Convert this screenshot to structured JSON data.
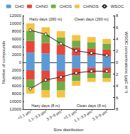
{
  "chart_data": [
    {
      "type": "bar",
      "stacked": true,
      "legend": "top",
      "grid": false,
      "ylabel": "Number of compounds",
      "y2label": "WSOC concentrations (μgC m⁻³)",
      "annotations": [
        "Hazy days (260 m)",
        "Clean days (260 m)"
      ],
      "categories": [
        "<1.1 μm",
        "1.1~3.3 μm",
        "3.3~9 μm",
        "<1.1 μm",
        "1.1~3.3 μm",
        "3.3~9 μm"
      ],
      "ylim": [
        0,
        12000
      ],
      "yticks": [
        0,
        2000,
        4000,
        6000,
        8000,
        10000,
        12000
      ],
      "y2lim": [
        0,
        8
      ],
      "y2ticks": [
        0,
        2,
        4,
        6,
        8
      ],
      "series": [
        {
          "name": "CHO",
          "color": "#5b9bd5",
          "values": [
            2500,
            2300,
            2000,
            1800,
            1700,
            1500
          ]
        },
        {
          "name": "CHNO",
          "color": "#e8463a",
          "values": [
            3000,
            2700,
            2400,
            2100,
            1900,
            1800
          ]
        },
        {
          "name": "CHOS",
          "color": "#70ad47",
          "values": [
            2500,
            2200,
            2000,
            1700,
            1600,
            1500
          ]
        },
        {
          "name": "CHNOS",
          "color": "#f5c242",
          "values": [
            2000,
            1800,
            1600,
            1400,
            1300,
            1200
          ]
        },
        {
          "name": "WSOC",
          "type": "line",
          "axis": "y2",
          "color": "#222222",
          "marker": "circle",
          "values": [
            5.5,
            4.8,
            3.2,
            2.0,
            1.6,
            1.2
          ]
        }
      ]
    },
    {
      "type": "bar",
      "stacked": true,
      "grid": false,
      "xlabel": "Size distribution",
      "annotations": [
        "Hazy days (8 m)",
        "Clean days (8 m)"
      ],
      "categories": [
        "<1.1 μm",
        "1.1~3.3 μm",
        "3.3~9 μm",
        "<1.1 μm",
        "1.1~3.3 μm",
        "3.3~9 μm"
      ],
      "ylim": [
        0,
        12000
      ],
      "yticks": [
        2000,
        4000,
        6000,
        8000,
        10000,
        12000
      ],
      "y2lim": [
        0,
        8
      ],
      "y2ticks": [
        2,
        4,
        6,
        8
      ],
      "series": [
        {
          "name": "CHO",
          "color": "#5b9bd5",
          "values": [
            2000,
            2200,
            2200,
            1500,
            1300,
            1300
          ]
        },
        {
          "name": "CHNO",
          "color": "#e8463a",
          "values": [
            2400,
            2700,
            2700,
            1800,
            1500,
            1500
          ]
        },
        {
          "name": "CHOS",
          "color": "#70ad47",
          "values": [
            2000,
            2300,
            2300,
            1500,
            1200,
            1200
          ]
        },
        {
          "name": "CHNOS",
          "color": "#f5c242",
          "values": [
            1600,
            1800,
            1800,
            1200,
            1000,
            1000
          ]
        },
        {
          "name": "WSOC",
          "type": "line",
          "axis": "y2",
          "color": "#222222",
          "marker": "circle",
          "values": [
            4.5,
            3.0,
            2.5,
            1.8,
            1.5,
            1.5
          ]
        }
      ]
    }
  ]
}
